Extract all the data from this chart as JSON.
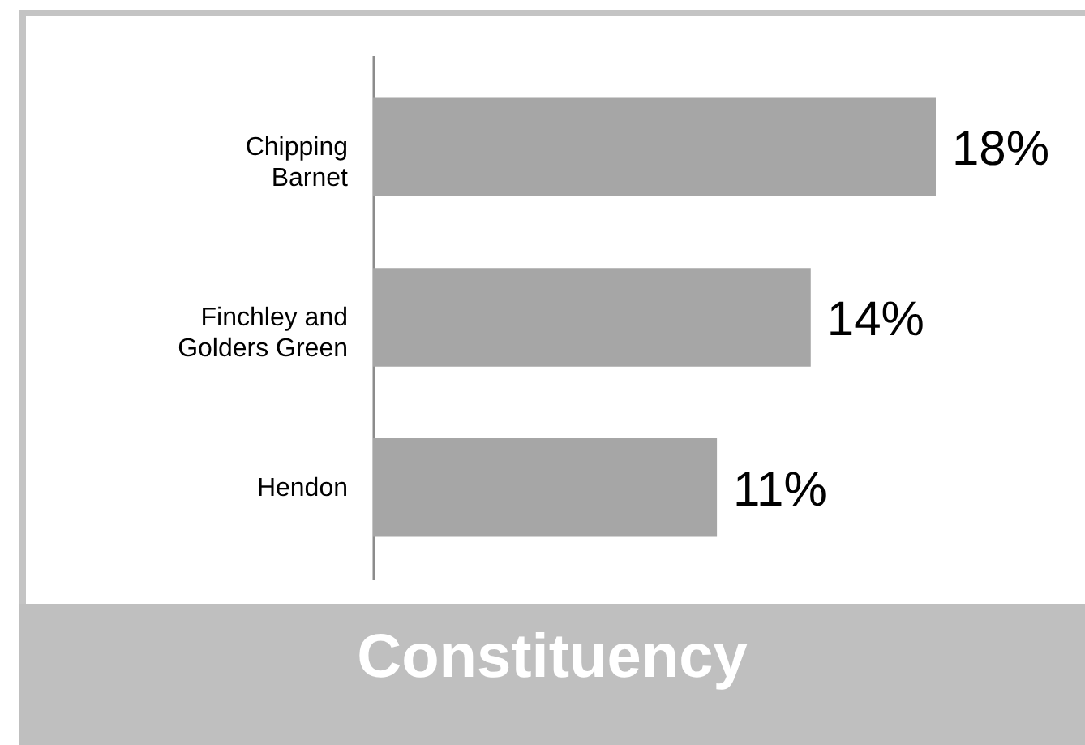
{
  "chart_data": {
    "type": "bar",
    "orientation": "horizontal",
    "xlabel": "Constituency",
    "categories": [
      "Chipping Barnet",
      "Finchley and Golders Green",
      "Hendon"
    ],
    "values": [
      18,
      14,
      11
    ],
    "value_labels": [
      "18%",
      "14%",
      "11%"
    ],
    "color": "#a6a6a6"
  }
}
